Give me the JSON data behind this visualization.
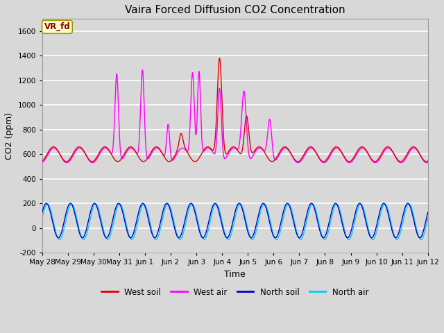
{
  "title": "Vaira Forced Diffusion CO2 Concentration",
  "xlabel": "Time",
  "ylabel": "CO2 (ppm)",
  "ylim": [
    -200,
    1700
  ],
  "legend_labels": [
    "West soil",
    "West air",
    "North soil",
    "North air"
  ],
  "legend_colors": [
    "#dd0000",
    "#ff00ff",
    "#0000cc",
    "#00ccff"
  ],
  "watermark_text": "VR_fd",
  "watermark_bg": "#ffffcc",
  "watermark_border": "#999900",
  "watermark_textcolor": "#880000",
  "background_color": "#d8d8d8",
  "axes_bg": "#d8d8d8",
  "grid_color": "#ffffff"
}
